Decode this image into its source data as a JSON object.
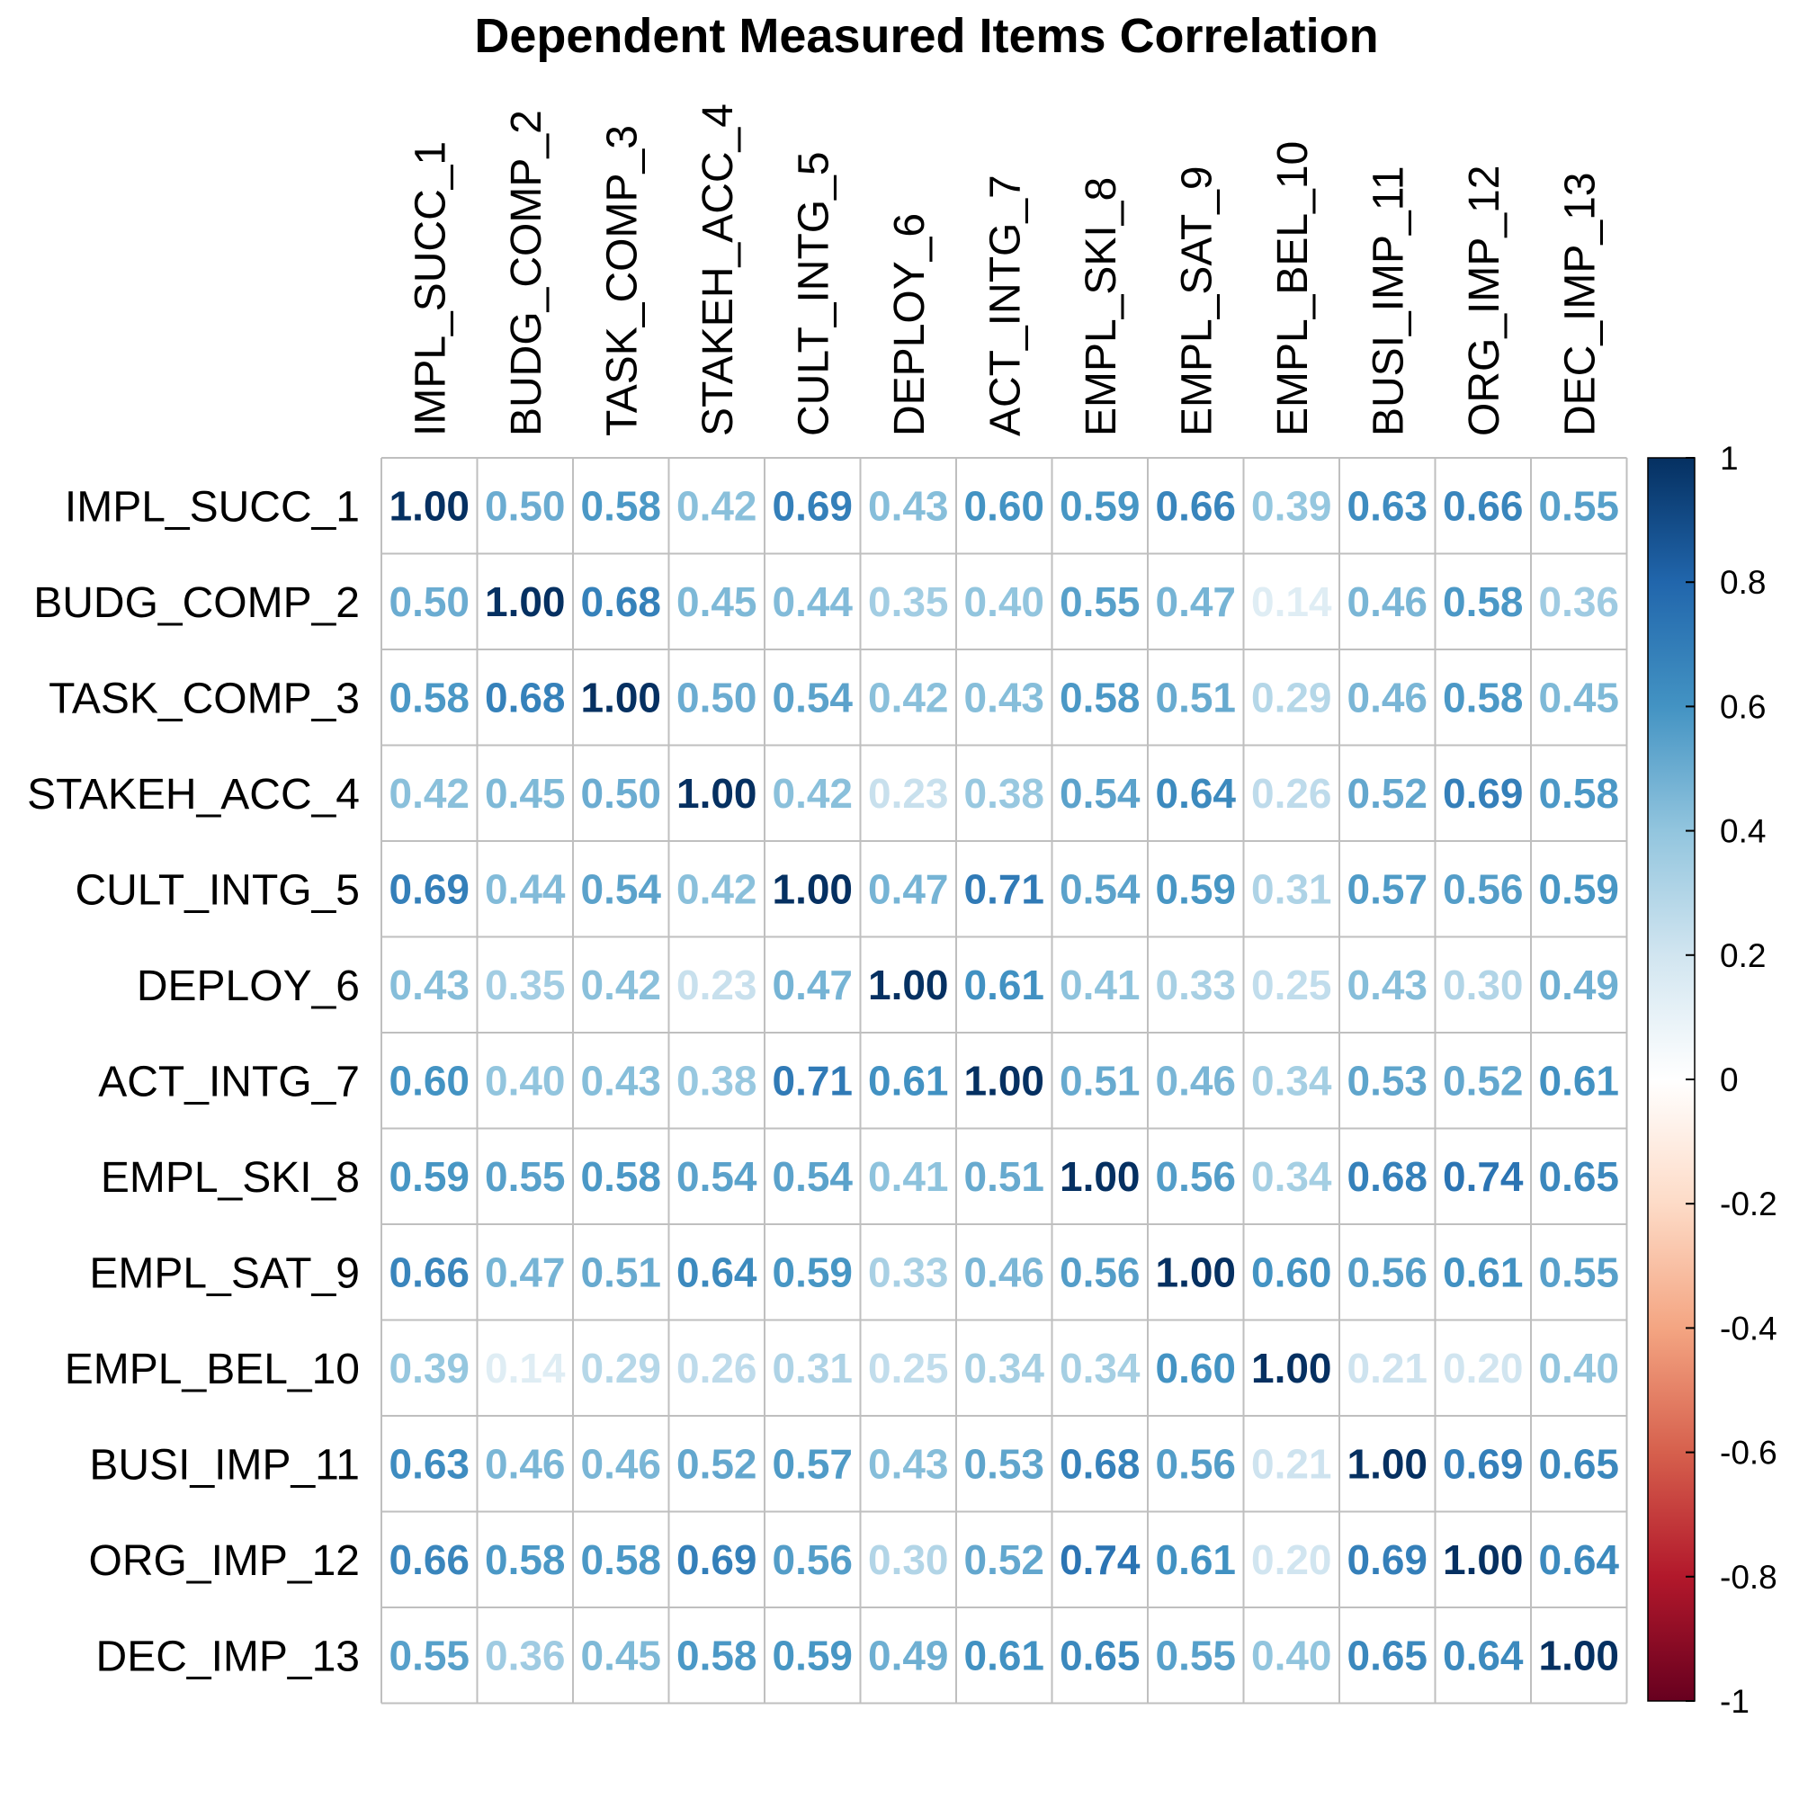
{
  "chart_data": {
    "type": "heatmap",
    "title": "Dependent Measured Items Correlation",
    "variables": [
      "IMPL_SUCC_1",
      "BUDG_COMP_2",
      "TASK_COMP_3",
      "STAKEH_ACC_4",
      "CULT_INTG_5",
      "DEPLOY_6",
      "ACT_INTG_7",
      "EMPL_SKI_8",
      "EMPL_SAT_9",
      "EMPL_BEL_10",
      "BUSI_IMP_11",
      "ORG_IMP_12",
      "DEC_IMP_13"
    ],
    "matrix": [
      [
        1.0,
        0.5,
        0.58,
        0.42,
        0.69,
        0.43,
        0.6,
        0.59,
        0.66,
        0.39,
        0.63,
        0.66,
        0.55
      ],
      [
        0.5,
        1.0,
        0.68,
        0.45,
        0.44,
        0.35,
        0.4,
        0.55,
        0.47,
        0.14,
        0.46,
        0.58,
        0.36
      ],
      [
        0.58,
        0.68,
        1.0,
        0.5,
        0.54,
        0.42,
        0.43,
        0.58,
        0.51,
        0.29,
        0.46,
        0.58,
        0.45
      ],
      [
        0.42,
        0.45,
        0.5,
        1.0,
        0.42,
        0.23,
        0.38,
        0.54,
        0.64,
        0.26,
        0.52,
        0.69,
        0.58
      ],
      [
        0.69,
        0.44,
        0.54,
        0.42,
        1.0,
        0.47,
        0.71,
        0.54,
        0.59,
        0.31,
        0.57,
        0.56,
        0.59
      ],
      [
        0.43,
        0.35,
        0.42,
        0.23,
        0.47,
        1.0,
        0.61,
        0.41,
        0.33,
        0.25,
        0.43,
        0.3,
        0.49
      ],
      [
        0.6,
        0.4,
        0.43,
        0.38,
        0.71,
        0.61,
        1.0,
        0.51,
        0.46,
        0.34,
        0.53,
        0.52,
        0.61
      ],
      [
        0.59,
        0.55,
        0.58,
        0.54,
        0.54,
        0.41,
        0.51,
        1.0,
        0.56,
        0.34,
        0.68,
        0.74,
        0.65
      ],
      [
        0.66,
        0.47,
        0.51,
        0.64,
        0.59,
        0.33,
        0.46,
        0.56,
        1.0,
        0.6,
        0.56,
        0.61,
        0.55
      ],
      [
        0.39,
        0.14,
        0.29,
        0.26,
        0.31,
        0.25,
        0.34,
        0.34,
        0.6,
        1.0,
        0.21,
        0.2,
        0.4
      ],
      [
        0.63,
        0.46,
        0.46,
        0.52,
        0.57,
        0.43,
        0.53,
        0.68,
        0.56,
        0.21,
        1.0,
        0.69,
        0.65
      ],
      [
        0.66,
        0.58,
        0.58,
        0.69,
        0.56,
        0.3,
        0.52,
        0.74,
        0.61,
        0.2,
        0.69,
        1.0,
        0.64
      ],
      [
        0.55,
        0.36,
        0.45,
        0.58,
        0.59,
        0.49,
        0.61,
        0.65,
        0.55,
        0.4,
        0.65,
        0.64,
        1.0
      ]
    ],
    "value_format": "0.00",
    "colorbar": {
      "range": [
        -1,
        1
      ],
      "ticks": [
        1,
        0.8,
        0.6,
        0.4,
        0.2,
        0,
        -0.2,
        -0.4,
        -0.6,
        -0.8,
        -1
      ],
      "tick_labels": [
        "1",
        "0.8",
        "0.6",
        "0.4",
        "0.2",
        "0",
        "-0.2",
        "-0.4",
        "-0.6",
        "-0.8",
        "-1"
      ],
      "colors": [
        "#67001F",
        "#B2182B",
        "#D6604D",
        "#F4A582",
        "#FDDBC7",
        "#FFFFFF",
        "#D1E5F0",
        "#92C5DE",
        "#4393C3",
        "#2166AC",
        "#053061"
      ],
      "placement": "right"
    },
    "grid": true
  }
}
